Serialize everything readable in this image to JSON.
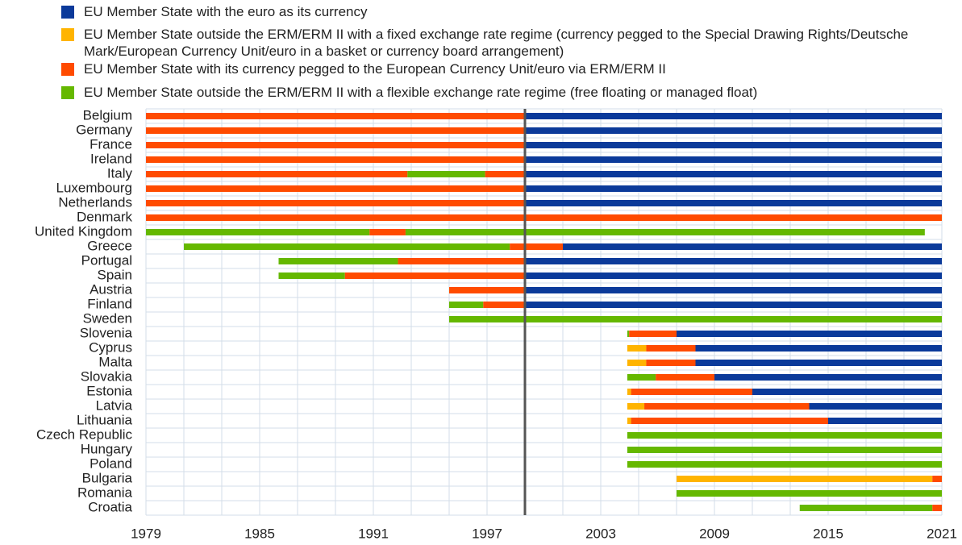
{
  "chart_data": {
    "type": "timeline",
    "series": [
      {
        "name": "EU Member State with the euro as its currency",
        "color": "#0b3a9a"
      },
      {
        "name": "EU Member State outside the ERM/ERM II with a fixed exchange rate regime (currency pegged to the Special Drawing Rights/Deutsche Mark/European Currency Unit/euro in a basket or currency board arrangement)",
        "color": "#ffb400"
      },
      {
        "name": "EU Member State with its currency pegged to the European Currency Unit/euro via ERM/ERM II",
        "color": "#ff4b00"
      },
      {
        "name": "EU Member State outside the ERM/ERM II with a flexible exchange rate regime (free floating or managed float)",
        "color": "#65b800"
      }
    ],
    "categories": [
      "Belgium",
      "Germany",
      "France",
      "Ireland",
      "Italy",
      "Luxembourg",
      "Netherlands",
      "Denmark",
      "United Kingdom",
      "Greece",
      "Portugal",
      "Spain",
      "Austria",
      "Finland",
      "Sweden",
      "Slovenia",
      "Cyprus",
      "Malta",
      "Slovakia",
      "Estonia",
      "Latvia",
      "Lithuania",
      "Czech Republic",
      "Hungary",
      "Poland",
      "Bulgaria",
      "Romania",
      "Croatia"
    ],
    "segments": [
      [
        {
          "series": 2,
          "start": 1979,
          "end": 1999
        },
        {
          "series": 0,
          "start": 1999,
          "end": 2021
        }
      ],
      [
        {
          "series": 2,
          "start": 1979,
          "end": 1999
        },
        {
          "series": 0,
          "start": 1999,
          "end": 2021
        }
      ],
      [
        {
          "series": 2,
          "start": 1979,
          "end": 1999
        },
        {
          "series": 0,
          "start": 1999,
          "end": 2021
        }
      ],
      [
        {
          "series": 2,
          "start": 1979,
          "end": 1999
        },
        {
          "series": 0,
          "start": 1999,
          "end": 2021
        }
      ],
      [
        {
          "series": 2,
          "start": 1979,
          "end": 1992.8
        },
        {
          "series": 3,
          "start": 1992.8,
          "end": 1996.9
        },
        {
          "series": 2,
          "start": 1996.9,
          "end": 1999
        },
        {
          "series": 0,
          "start": 1999,
          "end": 2021
        }
      ],
      [
        {
          "series": 2,
          "start": 1979,
          "end": 1999
        },
        {
          "series": 0,
          "start": 1999,
          "end": 2021
        }
      ],
      [
        {
          "series": 2,
          "start": 1979,
          "end": 1999
        },
        {
          "series": 0,
          "start": 1999,
          "end": 2021
        }
      ],
      [
        {
          "series": 2,
          "start": 1979,
          "end": 2021
        }
      ],
      [
        {
          "series": 3,
          "start": 1979,
          "end": 1990.8
        },
        {
          "series": 2,
          "start": 1990.8,
          "end": 1992.7
        },
        {
          "series": 3,
          "start": 1992.7,
          "end": 2020.1
        }
      ],
      [
        {
          "series": 3,
          "start": 1981,
          "end": 1998.2
        },
        {
          "series": 2,
          "start": 1998.2,
          "end": 2001
        },
        {
          "series": 0,
          "start": 2001,
          "end": 2021
        }
      ],
      [
        {
          "series": 3,
          "start": 1986,
          "end": 1992.3
        },
        {
          "series": 2,
          "start": 1992.3,
          "end": 1999
        },
        {
          "series": 0,
          "start": 1999,
          "end": 2021
        }
      ],
      [
        {
          "series": 3,
          "start": 1986,
          "end": 1989.5
        },
        {
          "series": 2,
          "start": 1989.5,
          "end": 1999
        },
        {
          "series": 0,
          "start": 1999,
          "end": 2021
        }
      ],
      [
        {
          "series": 2,
          "start": 1995,
          "end": 1999
        },
        {
          "series": 0,
          "start": 1999,
          "end": 2021
        }
      ],
      [
        {
          "series": 3,
          "start": 1995,
          "end": 1996.8
        },
        {
          "series": 2,
          "start": 1996.8,
          "end": 1999
        },
        {
          "series": 0,
          "start": 1999,
          "end": 2021
        }
      ],
      [
        {
          "series": 3,
          "start": 1995,
          "end": 2021
        }
      ],
      [
        {
          "series": 3,
          "start": 2004.4,
          "end": 2004.5
        },
        {
          "series": 2,
          "start": 2004.5,
          "end": 2007
        },
        {
          "series": 0,
          "start": 2007,
          "end": 2021
        }
      ],
      [
        {
          "series": 1,
          "start": 2004.4,
          "end": 2005.4
        },
        {
          "series": 2,
          "start": 2005.4,
          "end": 2008
        },
        {
          "series": 0,
          "start": 2008,
          "end": 2021
        }
      ],
      [
        {
          "series": 1,
          "start": 2004.4,
          "end": 2005.4
        },
        {
          "series": 2,
          "start": 2005.4,
          "end": 2008
        },
        {
          "series": 0,
          "start": 2008,
          "end": 2021
        }
      ],
      [
        {
          "series": 3,
          "start": 2004.4,
          "end": 2005.9
        },
        {
          "series": 2,
          "start": 2005.9,
          "end": 2009
        },
        {
          "series": 0,
          "start": 2009,
          "end": 2021
        }
      ],
      [
        {
          "series": 1,
          "start": 2004.4,
          "end": 2004.6
        },
        {
          "series": 2,
          "start": 2004.6,
          "end": 2011
        },
        {
          "series": 0,
          "start": 2011,
          "end": 2021
        }
      ],
      [
        {
          "series": 1,
          "start": 2004.4,
          "end": 2005.3
        },
        {
          "series": 2,
          "start": 2005.3,
          "end": 2014
        },
        {
          "series": 0,
          "start": 2014,
          "end": 2021
        }
      ],
      [
        {
          "series": 1,
          "start": 2004.4,
          "end": 2004.6
        },
        {
          "series": 2,
          "start": 2004.6,
          "end": 2015
        },
        {
          "series": 0,
          "start": 2015,
          "end": 2021
        }
      ],
      [
        {
          "series": 3,
          "start": 2004.4,
          "end": 2021
        }
      ],
      [
        {
          "series": 3,
          "start": 2004.4,
          "end": 2021
        }
      ],
      [
        {
          "series": 3,
          "start": 2004.4,
          "end": 2021
        }
      ],
      [
        {
          "series": 1,
          "start": 2007,
          "end": 2020.5
        },
        {
          "series": 2,
          "start": 2020.5,
          "end": 2021
        }
      ],
      [
        {
          "series": 3,
          "start": 2007,
          "end": 2021
        }
      ],
      [
        {
          "series": 3,
          "start": 2013.5,
          "end": 2020.5
        },
        {
          "series": 2,
          "start": 2020.5,
          "end": 2021
        }
      ]
    ],
    "xlim": [
      1979,
      2021
    ],
    "xticks": [
      1979,
      1985,
      1991,
      1997,
      2003,
      2009,
      2015,
      2021
    ],
    "xgrid": [
      1979,
      1981,
      1983,
      1985,
      1987,
      1989,
      1991,
      1993,
      1995,
      1997,
      1999,
      2001,
      2003,
      2005,
      2007,
      2009,
      2011,
      2013,
      2015,
      2017,
      2019,
      2021
    ],
    "divider": 1999,
    "grid": true
  }
}
